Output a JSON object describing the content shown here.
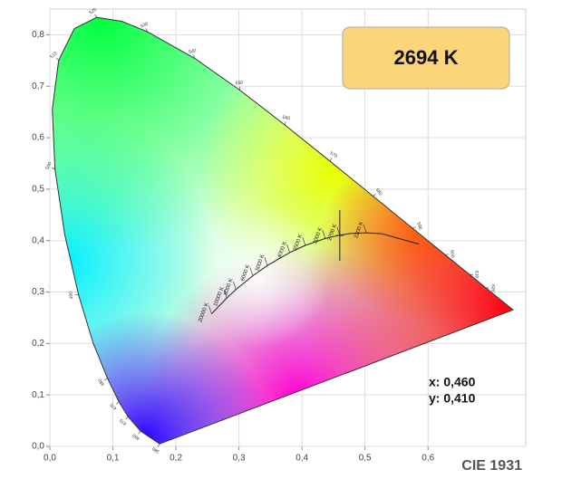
{
  "chart_data": {
    "type": "chromaticity",
    "badge": "2694 K",
    "caption": "CIE 1931",
    "xlim": [
      0,
      0.755
    ],
    "ylim": [
      0,
      0.85
    ],
    "xticks": [
      {
        "value": 0,
        "label": "0,0"
      },
      {
        "value": 0.1,
        "label": "0,1"
      },
      {
        "value": 0.2,
        "label": "0,2"
      },
      {
        "value": 0.3,
        "label": "0,3"
      },
      {
        "value": 0.4,
        "label": "0,4"
      },
      {
        "value": 0.5,
        "label": "0,5"
      },
      {
        "value": 0.6,
        "label": "0,6"
      }
    ],
    "yticks": [
      {
        "value": 0,
        "label": "0,0"
      },
      {
        "value": 0.1,
        "label": "0,1"
      },
      {
        "value": 0.2,
        "label": "0,2"
      },
      {
        "value": 0.3,
        "label": "0,3"
      },
      {
        "value": 0.4,
        "label": "0,4"
      },
      {
        "value": 0.5,
        "label": "0,5"
      },
      {
        "value": 0.6,
        "label": "0,6"
      },
      {
        "value": 0.7,
        "label": "0,7"
      },
      {
        "value": 0.8,
        "label": "0,8"
      }
    ],
    "grid": true,
    "spectral_locus": {
      "x": [
        0.1741,
        0.144,
        0.1241,
        0.1096,
        0.0913,
        0.0687,
        0.0454,
        0.0235,
        0.0082,
        0.0039,
        0.0139,
        0.0389,
        0.0743,
        0.1142,
        0.1547,
        0.2296,
        0.3016,
        0.3731,
        0.4441,
        0.5125,
        0.5752,
        0.627,
        0.6658,
        0.6915,
        0.7347
      ],
      "y": [
        0.005,
        0.0297,
        0.0578,
        0.0868,
        0.1327,
        0.2007,
        0.295,
        0.4127,
        0.5384,
        0.6548,
        0.7502,
        0.812,
        0.8338,
        0.8262,
        0.8059,
        0.7543,
        0.6923,
        0.6245,
        0.5547,
        0.4866,
        0.4242,
        0.3725,
        0.334,
        0.3083,
        0.2653
      ],
      "labels": [
        "380",
        "460",
        "470",
        "475",
        "480",
        null,
        "490",
        null,
        "500",
        null,
        "510",
        null,
        "520",
        null,
        "530",
        "540",
        "550",
        "560",
        "570",
        "580",
        "590",
        "600",
        "610",
        "620",
        null
      ]
    },
    "planckian_locus": {
      "x": [
        0.5857,
        0.5267,
        0.502,
        0.477,
        0.4599,
        0.4369,
        0.4053,
        0.3805,
        0.3451,
        0.3221,
        0.2952,
        0.2807,
        0.2565
      ],
      "y": [
        0.3931,
        0.4133,
        0.4152,
        0.4137,
        0.4106,
        0.4041,
        0.3907,
        0.3768,
        0.3516,
        0.3318,
        0.3048,
        0.2884,
        0.2577
      ],
      "labels": [
        null,
        null,
        "2200 K",
        null,
        "2700 K",
        "3000 K",
        "3500 K",
        "4000 K",
        "5000 K",
        "6000 K",
        "8000 K",
        "10000 K",
        "20000 K"
      ]
    },
    "point": {
      "x": 0.46,
      "y": 0.41,
      "x_label": "x: 0,460",
      "y_label": "y: 0,410"
    }
  }
}
